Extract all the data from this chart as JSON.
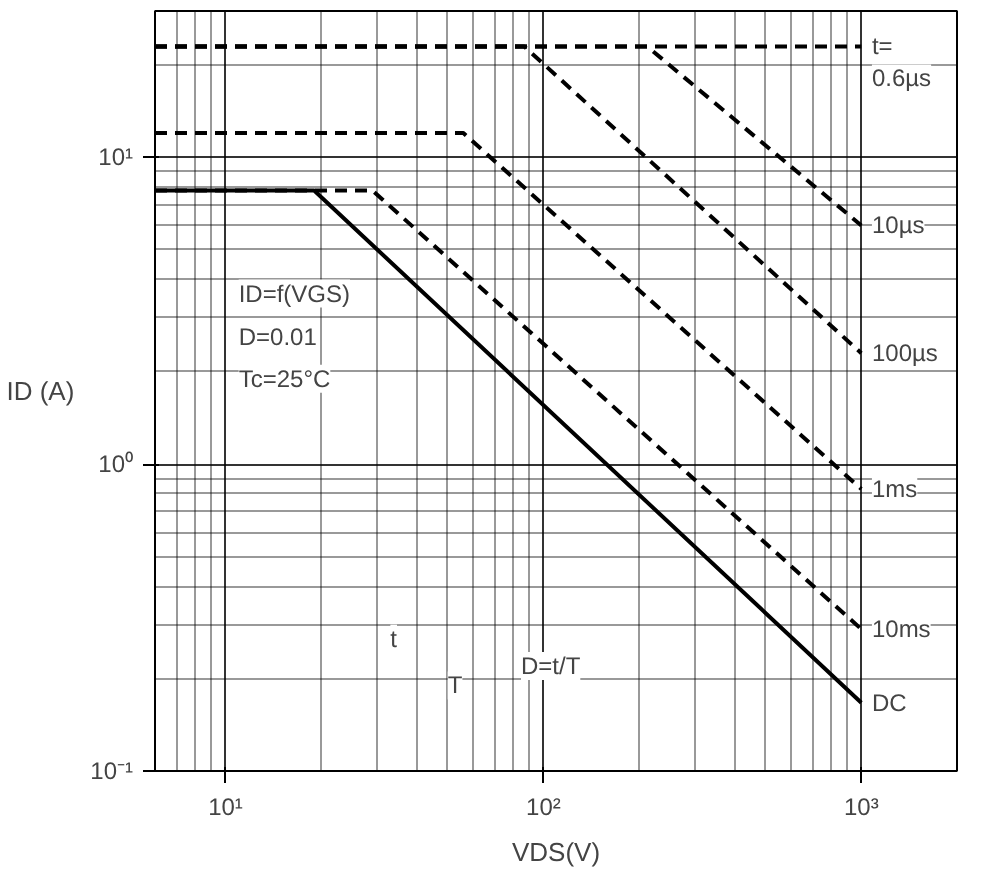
{
  "chart_data": {
    "type": "line",
    "xlabel": "VDS(V)",
    "ylabel": "ID (A)",
    "log": "xy",
    "grid": true,
    "xlim": [
      6,
      2000
    ],
    "ylim": [
      0.1,
      30
    ],
    "xticks": [
      {
        "value": 10,
        "label": "10¹"
      },
      {
        "value": 100,
        "label": "10²"
      },
      {
        "value": 1000,
        "label": "10³"
      }
    ],
    "yticks": [
      {
        "value": 0.1,
        "label": "10⁻¹"
      },
      {
        "value": 1,
        "label": "10⁰"
      },
      {
        "value": 10,
        "label": "10¹"
      }
    ],
    "series": [
      {
        "name": "0.6µs",
        "color": "#000000",
        "line_style": "dashed",
        "x": [
          6,
          1000
        ],
        "values": [
          23,
          23
        ]
      },
      {
        "name": "10µs",
        "color": "#000000",
        "line_style": "dashed",
        "x": [
          6,
          212,
          1000
        ],
        "values": [
          23,
          23,
          6.0
        ]
      },
      {
        "name": "100µs",
        "color": "#000000",
        "line_style": "dashed",
        "x": [
          6,
          87,
          1000
        ],
        "values": [
          23,
          23,
          2.3
        ]
      },
      {
        "name": "1ms",
        "color": "#000000",
        "line_style": "dashed",
        "x": [
          6,
          56,
          1000
        ],
        "values": [
          12,
          12,
          0.83
        ]
      },
      {
        "name": "10ms",
        "color": "#000000",
        "line_style": "dashed",
        "x": [
          6,
          29,
          1000
        ],
        "values": [
          7.8,
          7.8,
          0.29
        ]
      },
      {
        "name": "DC",
        "color": "#000000",
        "line_style": "solid",
        "x": [
          6,
          19,
          1000
        ],
        "values": [
          7.8,
          7.8,
          0.167
        ]
      }
    ],
    "annotations": [
      "t=",
      "ID=f(VGS)",
      "D=0.01",
      "Tc=25°C",
      "t",
      "T",
      "D=t/T"
    ]
  }
}
